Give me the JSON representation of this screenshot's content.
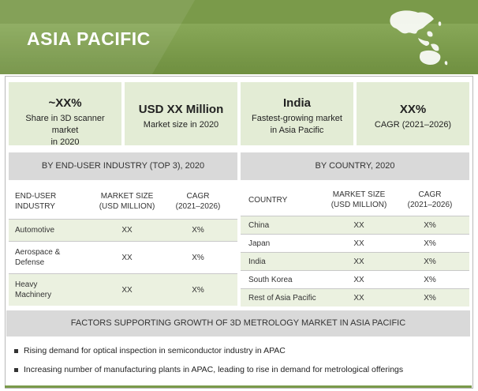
{
  "header": {
    "title": "ASIA PACIFIC"
  },
  "stats": [
    {
      "big": "~XX%",
      "line1": "Share in 3D scanner market",
      "line2": "in 2020"
    },
    {
      "big": "USD XX Million",
      "line1": "Market size in 2020",
      "line2": ""
    },
    {
      "big": "India",
      "line1": "Fastest-growing market",
      "line2": "in Asia Pacific"
    },
    {
      "big": "XX%",
      "line1": "CAGR (2021–2026)",
      "line2": ""
    }
  ],
  "industry": {
    "title": "BY END-USER INDUSTRY (TOP 3), 2020",
    "headers": [
      {
        "line1": "END-USER",
        "line2": "INDUSTRY"
      },
      {
        "line1": "MARKET SIZE",
        "line2": "(USD MILLION)"
      },
      {
        "line1": "CAGR",
        "line2": "(2021–2026)"
      }
    ],
    "rows": [
      {
        "name1": "Automotive",
        "name2": "",
        "size": "XX",
        "cagr": "X%"
      },
      {
        "name1": "Aerospace &",
        "name2": "Defense",
        "size": "XX",
        "cagr": "X%"
      },
      {
        "name1": "Heavy",
        "name2": "Machinery",
        "size": "XX",
        "cagr": "X%"
      }
    ]
  },
  "country": {
    "title": "BY COUNTRY, 2020",
    "headers": [
      {
        "line1": "COUNTRY",
        "line2": ""
      },
      {
        "line1": "MARKET SIZE",
        "line2": "(USD MILLION)"
      },
      {
        "line1": "CAGR",
        "line2": "(2021–2026)"
      }
    ],
    "rows": [
      {
        "name": "China",
        "size": "XX",
        "cagr": "X%"
      },
      {
        "name": "Japan",
        "size": "XX",
        "cagr": "X%"
      },
      {
        "name": "India",
        "size": "XX",
        "cagr": "X%"
      },
      {
        "name": "South Korea",
        "size": "XX",
        "cagr": "X%"
      },
      {
        "name": "Rest of Asia Pacific",
        "size": "XX",
        "cagr": "X%"
      }
    ]
  },
  "factors": {
    "title": "FACTORS SUPPORTING GROWTH OF 3D METROLOGY MARKET IN ASIA PACIFIC",
    "items": [
      "Rising demand for optical inspection in semiconductor industry in APAC",
      "Increasing number of manufacturing plants in APAC, leading to rise in demand for metrological offerings"
    ]
  },
  "colors": {
    "header": "#7a9a4a",
    "stat_bg": "#e3ecd5",
    "section_bg": "#d9d9d9",
    "row_shade": "#ebf1e0"
  }
}
